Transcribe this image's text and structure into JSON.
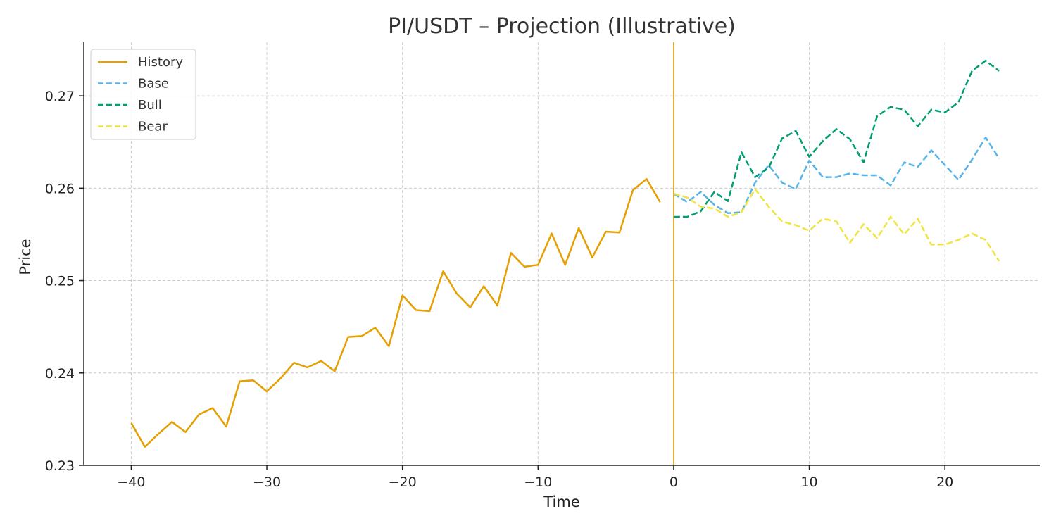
{
  "chart_data": {
    "type": "line",
    "title": "PI/USDT – Projection (Illustrative)",
    "xlabel": "Time",
    "ylabel": "Price",
    "xlim": [
      -43.5,
      27
    ],
    "ylim": [
      0.23,
      0.2758
    ],
    "xticks": [
      -40,
      -30,
      -20,
      -10,
      0,
      10,
      20
    ],
    "yticks": [
      0.23,
      0.24,
      0.25,
      0.26,
      0.27
    ],
    "xtick_labels": [
      "−40",
      "−30",
      "−20",
      "−10",
      "0",
      "10",
      "20"
    ],
    "ytick_labels": [
      "0.23",
      "0.24",
      "0.25",
      "0.26",
      "0.27"
    ],
    "grid": true,
    "legend_position": "top-left",
    "vline": {
      "x": 0,
      "color": "#E69F00"
    },
    "series": [
      {
        "name": "History",
        "color": "#E69F00",
        "dash": "solid",
        "x": [
          -40,
          -39,
          -38,
          -37,
          -36,
          -35,
          -34,
          -33,
          -32,
          -31,
          -30,
          -29,
          -28,
          -27,
          -26,
          -25,
          -24,
          -23,
          -22,
          -21,
          -20,
          -19,
          -18,
          -17,
          -16,
          -15,
          -14,
          -13,
          -12,
          -11,
          -10,
          -9,
          -8,
          -7,
          -6,
          -5,
          -4,
          -3,
          -2,
          -1
        ],
        "values": [
          0.2346,
          0.232,
          0.2334,
          0.2347,
          0.2336,
          0.2355,
          0.2362,
          0.2342,
          0.2391,
          0.2392,
          0.238,
          0.2394,
          0.2411,
          0.2406,
          0.2413,
          0.2402,
          0.2439,
          0.244,
          0.2449,
          0.2429,
          0.2484,
          0.2468,
          0.2467,
          0.251,
          0.2486,
          0.2471,
          0.2494,
          0.2473,
          0.253,
          0.2515,
          0.2517,
          0.2551,
          0.2517,
          0.2557,
          0.2525,
          0.2553,
          0.2552,
          0.2598,
          0.261,
          0.2585
        ]
      },
      {
        "name": "Base",
        "color": "#56B4E9",
        "dash": "dashed",
        "x": [
          0,
          1,
          2,
          3,
          4,
          5,
          6,
          7,
          8,
          9,
          10,
          11,
          12,
          13,
          14,
          15,
          16,
          17,
          18,
          19,
          20,
          21,
          22,
          23,
          24
        ],
        "values": [
          0.2594,
          0.2585,
          0.2596,
          0.2582,
          0.2573,
          0.2574,
          0.2606,
          0.2625,
          0.2606,
          0.2599,
          0.263,
          0.2612,
          0.2612,
          0.2616,
          0.2614,
          0.2614,
          0.2603,
          0.2628,
          0.2623,
          0.2641,
          0.2625,
          0.2609,
          0.2631,
          0.2655,
          0.2632
        ]
      },
      {
        "name": "Bull",
        "color": "#009E73",
        "dash": "dashed",
        "x": [
          0,
          1,
          2,
          3,
          4,
          5,
          6,
          7,
          8,
          9,
          10,
          11,
          12,
          13,
          14,
          15,
          16,
          17,
          18,
          19,
          20,
          21,
          22,
          23,
          24
        ],
        "values": [
          0.2569,
          0.2569,
          0.2575,
          0.2596,
          0.2586,
          0.2639,
          0.2612,
          0.2622,
          0.2654,
          0.2662,
          0.2634,
          0.2651,
          0.2664,
          0.2653,
          0.2628,
          0.2678,
          0.2688,
          0.2685,
          0.2667,
          0.2685,
          0.2682,
          0.2693,
          0.2727,
          0.2738,
          0.2727
        ]
      },
      {
        "name": "Bear",
        "color": "#F0E442",
        "dash": "dashed",
        "x": [
          0,
          1,
          2,
          3,
          4,
          5,
          6,
          7,
          8,
          9,
          10,
          11,
          12,
          13,
          14,
          15,
          16,
          17,
          18,
          19,
          20,
          21,
          22,
          23,
          24
        ],
        "values": [
          0.2594,
          0.259,
          0.258,
          0.2578,
          0.2569,
          0.2574,
          0.2599,
          0.258,
          0.2564,
          0.256,
          0.2554,
          0.2567,
          0.2564,
          0.2541,
          0.2561,
          0.2546,
          0.2569,
          0.255,
          0.2567,
          0.2539,
          0.2539,
          0.2544,
          0.2551,
          0.2544,
          0.2521
        ]
      }
    ]
  }
}
